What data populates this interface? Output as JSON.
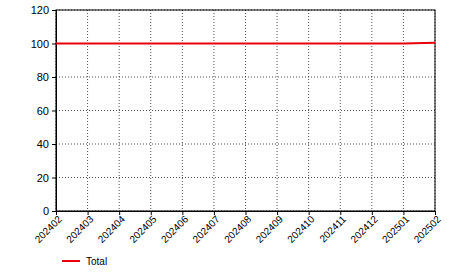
{
  "chart_data": {
    "type": "line",
    "categories": [
      "202402",
      "202403",
      "202404",
      "202405",
      "202406",
      "202407",
      "202408",
      "202409",
      "202410",
      "202411",
      "202412",
      "202501",
      "202502"
    ],
    "series": [
      {
        "name": "Total",
        "color": "#e8000b",
        "values": [
          100,
          100,
          100,
          100,
          100,
          100,
          100,
          100,
          100,
          100,
          100,
          100,
          100.5
        ]
      }
    ],
    "ylim": [
      0,
      120
    ],
    "yticks": [
      0,
      20,
      40,
      60,
      80,
      100,
      120
    ],
    "grid": true,
    "legend": "bottom-left"
  }
}
